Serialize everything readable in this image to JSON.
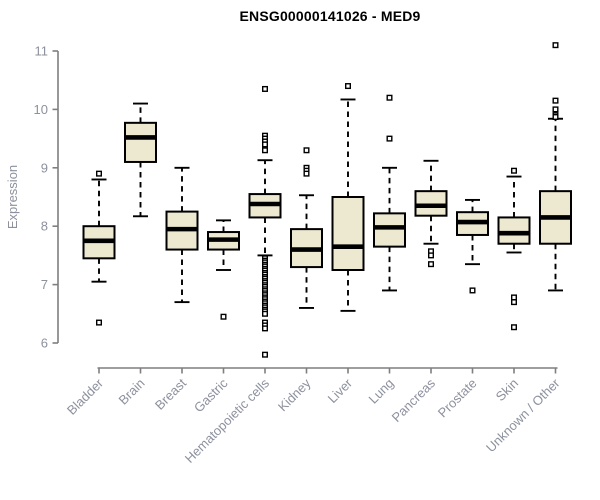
{
  "title": "ENSG00000141026 - MED9",
  "colors": {
    "background": "#ffffff",
    "box_fill": "#ede8d0",
    "box_border": "#000000",
    "median_line": "#000000",
    "whisker": "#000000",
    "outlier_stroke": "#000000",
    "axis_line": "#7f7f7f",
    "tick_label": "#8d919e",
    "axis_label": "#8d919e",
    "title_color": "#000000"
  },
  "chart_data": {
    "type": "box",
    "title": "ENSG00000141026 - MED9",
    "xlabel": "",
    "ylabel": "Expression",
    "ylim": [
      6,
      11
    ],
    "yticks": [
      6,
      7,
      8,
      9,
      10,
      11
    ],
    "grid": false,
    "legend": "none",
    "category_label_rotation_deg": 45,
    "categories": [
      "Bladder",
      "Brain",
      "Breast",
      "Gastric",
      "Hematopoietic cells",
      "Kidney",
      "Liver",
      "Lung",
      "Pancreas",
      "Prostate",
      "Skin",
      "Unknown / Other"
    ],
    "boxes": [
      {
        "category": "Bladder",
        "whisker_low": 7.05,
        "q1": 7.45,
        "median": 7.75,
        "q3": 8.0,
        "whisker_high": 8.8,
        "outliers": [
          8.9,
          6.35
        ]
      },
      {
        "category": "Brain",
        "whisker_low": 8.17,
        "q1": 9.1,
        "median": 9.52,
        "q3": 9.77,
        "whisker_high": 10.1,
        "outliers": []
      },
      {
        "category": "Breast",
        "whisker_low": 6.7,
        "q1": 7.6,
        "median": 7.95,
        "q3": 8.25,
        "whisker_high": 9.0,
        "outliers": []
      },
      {
        "category": "Gastric",
        "whisker_low": 7.25,
        "q1": 7.6,
        "median": 7.77,
        "q3": 7.9,
        "whisker_high": 8.1,
        "outliers": [
          6.45
        ]
      },
      {
        "category": "Hematopoietic cells",
        "whisker_low": 7.5,
        "q1": 8.15,
        "median": 8.38,
        "q3": 8.55,
        "whisker_high": 9.13,
        "outliers": [
          10.35,
          9.55,
          9.5,
          9.45,
          9.4,
          9.3,
          7.45,
          7.41,
          7.38,
          7.34,
          7.31,
          7.27,
          7.24,
          7.2,
          7.17,
          7.13,
          7.1,
          7.06,
          7.03,
          6.99,
          6.96,
          6.92,
          6.89,
          6.85,
          6.82,
          6.78,
          6.75,
          6.71,
          6.68,
          6.64,
          6.61,
          6.57,
          6.54,
          6.5,
          6.35,
          6.3,
          6.25,
          5.8
        ]
      },
      {
        "category": "Kidney",
        "whisker_low": 6.6,
        "q1": 7.3,
        "median": 7.6,
        "q3": 7.95,
        "whisker_high": 8.53,
        "outliers": [
          9.3,
          9.0,
          8.95,
          8.9
        ]
      },
      {
        "category": "Liver",
        "whisker_low": 6.55,
        "q1": 7.25,
        "median": 7.65,
        "q3": 8.5,
        "whisker_high": 10.17,
        "outliers": [
          10.4
        ]
      },
      {
        "category": "Lung",
        "whisker_low": 6.9,
        "q1": 7.65,
        "median": 7.98,
        "q3": 8.22,
        "whisker_high": 9.0,
        "outliers": [
          10.2,
          9.5
        ]
      },
      {
        "category": "Pancreas",
        "whisker_low": 7.7,
        "q1": 8.18,
        "median": 8.35,
        "q3": 8.6,
        "whisker_high": 9.12,
        "outliers": [
          7.57,
          7.5,
          7.35
        ]
      },
      {
        "category": "Prostate",
        "whisker_low": 7.35,
        "q1": 7.85,
        "median": 8.07,
        "q3": 8.24,
        "whisker_high": 8.45,
        "outliers": [
          6.9
        ]
      },
      {
        "category": "Skin",
        "whisker_low": 7.55,
        "q1": 7.7,
        "median": 7.88,
        "q3": 8.15,
        "whisker_high": 8.85,
        "outliers": [
          8.95,
          6.78,
          6.7,
          6.27
        ]
      },
      {
        "category": "Unknown / Other",
        "whisker_low": 6.9,
        "q1": 7.7,
        "median": 8.15,
        "q3": 8.6,
        "whisker_high": 9.84,
        "outliers": [
          11.1,
          10.15,
          10.0,
          9.9,
          9.87
        ]
      }
    ]
  }
}
